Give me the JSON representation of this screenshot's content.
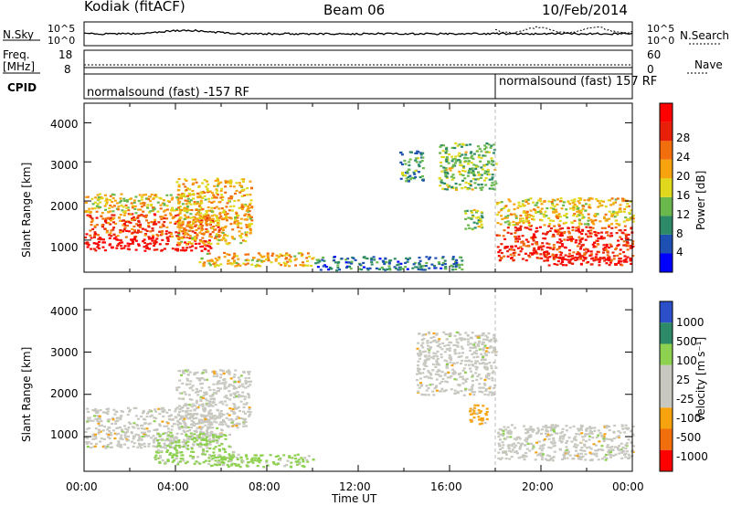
{
  "header": {
    "station": "Kodiak (fitACF)",
    "beam": "Beam 06",
    "date": "10/Feb/2014"
  },
  "noise_panel": {
    "left_label": "N.Sky",
    "right_label": "N.Search",
    "left_ticks": [
      "10^5",
      "10^0"
    ],
    "right_ticks": [
      "10^5",
      "10^0"
    ]
  },
  "freq_panel": {
    "left_label_top": "Freq.",
    "left_label_bottom": "[MHz]",
    "right_label": "Nave",
    "left_ticks": [
      "18",
      "8"
    ],
    "right_ticks": [
      "60",
      "0"
    ]
  },
  "cpid": {
    "label": "CPID",
    "segments": [
      {
        "text": "normalsound (fast) -157 RF",
        "start_hour": 0
      },
      {
        "text": "normalsound (fast) 157 RF",
        "start_hour": 18
      }
    ]
  },
  "chart_data": [
    {
      "type": "heatmap",
      "quantity": "power",
      "ylabel": "Slant Range [km]",
      "ylim": [
        180,
        4500
      ],
      "yticks": [
        "1000",
        "2000",
        "3000",
        "4000"
      ],
      "xlim_hours": [
        0,
        24
      ],
      "colorbar": {
        "label": "Power [dB]",
        "ticks": [
          "4",
          "8",
          "12",
          "16",
          "20",
          "24",
          "28"
        ],
        "colors": [
          "#0000ff",
          "#1e50b4",
          "#2d8a68",
          "#6ab84c",
          "#e0d81c",
          "#f7a310",
          "#f26d0c",
          "#e8200a",
          "#ff0000"
        ]
      },
      "regions": [
        {
          "hours": [
            0.0,
            5.5
          ],
          "ranges": [
            750,
            1100
          ],
          "level": 0.95
        },
        {
          "hours": [
            0.0,
            6.0
          ],
          "ranges": [
            1100,
            1700
          ],
          "level": 0.75
        },
        {
          "hours": [
            0.0,
            5.0
          ],
          "ranges": [
            1700,
            2200
          ],
          "level": 0.55
        },
        {
          "hours": [
            4.0,
            7.3
          ],
          "ranges": [
            900,
            2600
          ],
          "level": 0.6
        },
        {
          "hours": [
            5.0,
            10.0
          ],
          "ranges": [
            350,
            700
          ],
          "level": 0.6
        },
        {
          "hours": [
            10.0,
            16.5
          ],
          "ranges": [
            250,
            600
          ],
          "level": 0.25
        },
        {
          "hours": [
            13.8,
            14.8
          ],
          "ranges": [
            2500,
            3300
          ],
          "level": 0.3
        },
        {
          "hours": [
            15.5,
            18.0
          ],
          "ranges": [
            2300,
            3500
          ],
          "level": 0.4
        },
        {
          "hours": [
            16.6,
            17.4
          ],
          "ranges": [
            1300,
            1800
          ],
          "level": 0.45
        },
        {
          "hours": [
            18.0,
            24.0
          ],
          "ranges": [
            500,
            1400
          ],
          "level": 0.85
        },
        {
          "hours": [
            18.0,
            24.0
          ],
          "ranges": [
            1400,
            2100
          ],
          "level": 0.55
        },
        {
          "hours": [
            20.0,
            24.0
          ],
          "ranges": [
            380,
            600
          ],
          "level": 0.95
        }
      ]
    },
    {
      "type": "heatmap",
      "quantity": "velocity",
      "ylabel": "Slant Range [km]",
      "ylim": [
        180,
        4500
      ],
      "yticks": [
        "1000",
        "2000",
        "3000",
        "4000"
      ],
      "xlim_hours": [
        0,
        24
      ],
      "xlabel": "Time UT",
      "xticks": [
        "00:00",
        "04:00",
        "08:00",
        "12:00",
        "16:00",
        "20:00",
        "00:00"
      ],
      "colorbar": {
        "label": "Velocity [m s⁻¹]",
        "ticks": [
          "1000",
          "500",
          "100",
          "25",
          "-25",
          "-100",
          "-500",
          "-1000"
        ],
        "colors": [
          "#2a4fc8",
          "#2d8a68",
          "#8ed050",
          "#c8c8c0",
          "#c8c8c0",
          "#f7a310",
          "#f26d0c",
          "#ff0000"
        ]
      },
      "regions": [
        {
          "hours": [
            0.0,
            6.0
          ],
          "ranges": [
            750,
            1700
          ],
          "class": "ground"
        },
        {
          "hours": [
            4.0,
            7.3
          ],
          "ranges": [
            1200,
            2600
          ],
          "class": "ground"
        },
        {
          "hours": [
            3.0,
            6.5
          ],
          "ranges": [
            350,
            1100
          ],
          "class": "positive"
        },
        {
          "hours": [
            5.5,
            10.0
          ],
          "ranges": [
            300,
            600
          ],
          "class": "positive"
        },
        {
          "hours": [
            14.5,
            18.0
          ],
          "ranges": [
            2000,
            3500
          ],
          "class": "ground"
        },
        {
          "hours": [
            16.8,
            17.6
          ],
          "ranges": [
            1300,
            1800
          ],
          "class": "negative"
        },
        {
          "hours": [
            18.0,
            24.0
          ],
          "ranges": [
            450,
            1300
          ],
          "class": "ground"
        }
      ]
    }
  ]
}
